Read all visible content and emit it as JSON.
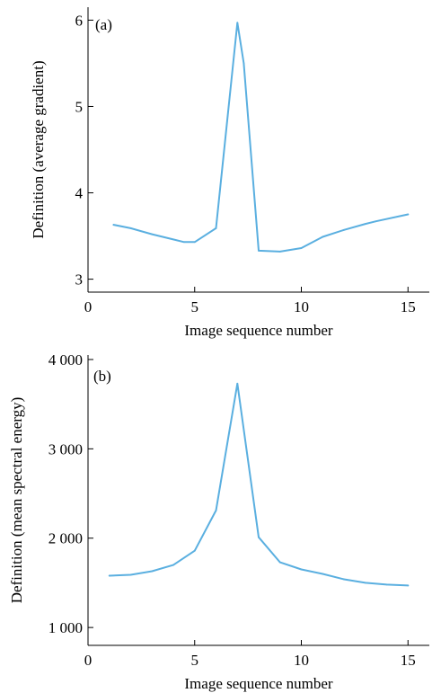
{
  "colors": {
    "line": "#5aafe0",
    "axis": "#000000"
  },
  "chart_data": [
    {
      "type": "line",
      "panel_label": "(a)",
      "xlabel": "Image sequence number",
      "ylabel": "Definition (average gradient)",
      "xlim": [
        0,
        16
      ],
      "ylim": [
        2.85,
        6.15
      ],
      "xticks": [
        0,
        5,
        10,
        15
      ],
      "xtick_labels": [
        "0",
        "5",
        "10",
        "15"
      ],
      "yticks": [
        3,
        4,
        5,
        6
      ],
      "ytick_labels": [
        "3",
        "4",
        "5",
        "6"
      ],
      "grid": false,
      "series": [
        {
          "x": [
            1.2,
            2,
            3,
            4,
            4.5,
            5,
            6,
            7,
            7.3,
            8,
            9,
            10,
            11,
            12,
            13,
            13.5,
            15
          ],
          "y": [
            3.63,
            3.59,
            3.52,
            3.46,
            3.43,
            3.43,
            3.59,
            5.97,
            5.5,
            3.33,
            3.32,
            3.36,
            3.49,
            3.57,
            3.64,
            3.67,
            3.75
          ]
        }
      ]
    },
    {
      "type": "line",
      "panel_label": "(b)",
      "xlabel": "Image sequence number",
      "ylabel": "Definition (mean spectral energy)",
      "xlim": [
        0,
        16
      ],
      "ylim": [
        800,
        4050
      ],
      "xticks": [
        0,
        5,
        10,
        15
      ],
      "xtick_labels": [
        "0",
        "5",
        "10",
        "15"
      ],
      "yticks": [
        1000,
        2000,
        3000,
        4000
      ],
      "ytick_labels": [
        "1 000",
        "2 000",
        "3 000",
        "4 000"
      ],
      "grid": false,
      "series": [
        {
          "x": [
            1,
            2,
            3,
            4,
            5,
            6,
            7,
            8,
            9,
            10,
            11,
            12,
            13,
            14,
            15
          ],
          "y": [
            1580,
            1590,
            1630,
            1700,
            1860,
            2310,
            3730,
            2010,
            1730,
            1650,
            1600,
            1540,
            1500,
            1480,
            1470
          ]
        }
      ]
    }
  ]
}
